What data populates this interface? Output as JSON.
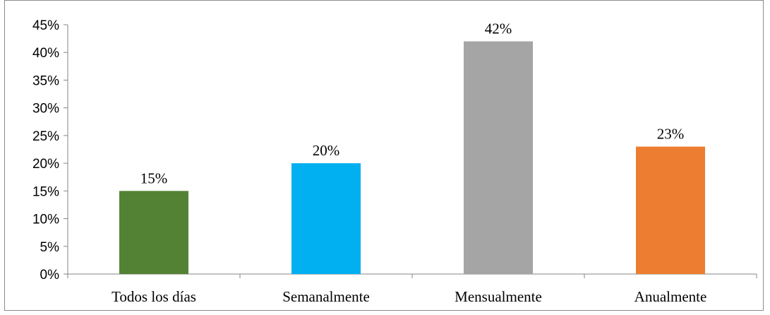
{
  "chart_data": {
    "type": "bar",
    "title": "",
    "xlabel": "",
    "ylabel": "",
    "categories": [
      "Todos los días",
      "Semanalmente",
      "Mensualmente",
      "Anualmente"
    ],
    "values": [
      15,
      20,
      42,
      23
    ],
    "data_labels": [
      "15%",
      "20%",
      "42%",
      "23%"
    ],
    "colors": [
      "#548235",
      "#00b0f0",
      "#a5a5a5",
      "#ed7d31"
    ],
    "ylim": [
      0,
      45
    ],
    "yticks": [
      0,
      5,
      10,
      15,
      20,
      25,
      30,
      35,
      40,
      45
    ],
    "ytick_labels": [
      "0%",
      "5%",
      "10%",
      "15%",
      "20%",
      "25%",
      "30%",
      "35%",
      "40%",
      "45%"
    ],
    "grid": false,
    "legend": "none"
  }
}
